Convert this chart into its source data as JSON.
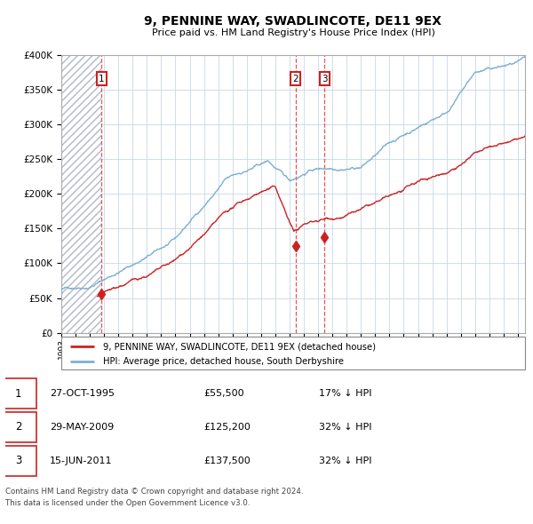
{
  "title": "9, PENNINE WAY, SWADLINCOTE, DE11 9EX",
  "subtitle": "Price paid vs. HM Land Registry's House Price Index (HPI)",
  "hpi_color": "#7aafd4",
  "price_color": "#cc2222",
  "vline_color": "#dd4444",
  "marker_color": "#cc2222",
  "grid_color": "#c8d8e8",
  "legend_label_price": "9, PENNINE WAY, SWADLINCOTE, DE11 9EX (detached house)",
  "legend_label_hpi": "HPI: Average price, detached house, South Derbyshire",
  "transactions": [
    {
      "num": 1,
      "date": "27-OCT-1995",
      "year": 1995.82,
      "price": 55500,
      "label": "17% ↓ HPI"
    },
    {
      "num": 2,
      "date": "29-MAY-2009",
      "year": 2009.41,
      "price": 125200,
      "label": "32% ↓ HPI"
    },
    {
      "num": 3,
      "date": "15-JUN-2011",
      "year": 2011.45,
      "price": 137500,
      "label": "32% ↓ HPI"
    }
  ],
  "footer1": "Contains HM Land Registry data © Crown copyright and database right 2024.",
  "footer2": "This data is licensed under the Open Government Licence v3.0.",
  "ylim": [
    0,
    400000
  ],
  "xlim_start": 1993.0,
  "xlim_end": 2025.5
}
